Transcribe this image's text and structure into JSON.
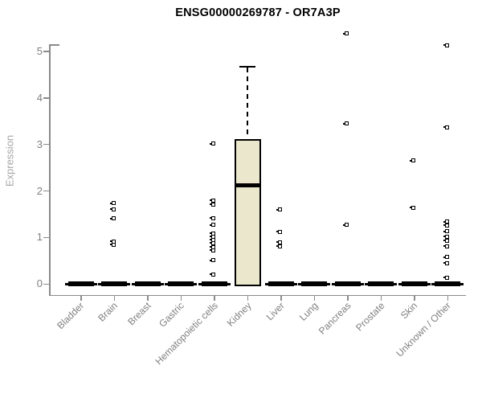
{
  "title": "ENSG00000269787 - OR7A3P",
  "chart_data": {
    "type": "boxplot",
    "title": "ENSG00000269787 - OR7A3P",
    "xlabel": "",
    "ylabel": "Expression",
    "ylim": [
      0,
      5.4
    ],
    "yticks": [
      0,
      1,
      2,
      3,
      4,
      5
    ],
    "grid": false,
    "legend": "none",
    "categories": [
      "Bladder",
      "Brain",
      "Breast",
      "Gastric",
      "Hematopoietic cells",
      "Kidney",
      "Liver",
      "Lung",
      "Pancreas",
      "Prostate",
      "Skin",
      "Unknown / Other"
    ],
    "boxes": [
      {
        "category": "Bladder",
        "q1": 0,
        "median": 0,
        "q3": 0,
        "whisker_low": 0,
        "whisker_high": 0,
        "outliers": []
      },
      {
        "category": "Brain",
        "q1": 0,
        "median": 0,
        "q3": 0,
        "whisker_low": 0,
        "whisker_high": 0,
        "outliers": [
          1.74,
          1.61,
          1.41,
          0.92,
          0.85
        ]
      },
      {
        "category": "Breast",
        "q1": 0,
        "median": 0,
        "q3": 0,
        "whisker_low": 0,
        "whisker_high": 0,
        "outliers": []
      },
      {
        "category": "Gastric",
        "q1": 0,
        "median": 0,
        "q3": 0,
        "whisker_low": 0,
        "whisker_high": 0,
        "outliers": []
      },
      {
        "category": "Hematopoietic cells",
        "q1": 0,
        "median": 0,
        "q3": 0,
        "whisker_low": 0,
        "whisker_high": 0,
        "outliers": [
          3.02,
          1.8,
          1.71,
          1.42,
          1.27,
          1.09,
          1.02,
          0.95,
          0.88,
          0.8,
          0.73,
          0.51,
          0.21
        ]
      },
      {
        "category": "Kidney",
        "q1": 0,
        "median": 2.12,
        "q3": 3.12,
        "whisker_low": 0,
        "whisker_high": 4.67,
        "outliers": []
      },
      {
        "category": "Liver",
        "q1": 0,
        "median": 0,
        "q3": 0,
        "whisker_low": 0,
        "whisker_high": 0,
        "outliers": [
          1.6,
          1.12,
          0.9,
          0.81
        ]
      },
      {
        "category": "Lung",
        "q1": 0,
        "median": 0,
        "q3": 0,
        "whisker_low": 0,
        "whisker_high": 0,
        "outliers": []
      },
      {
        "category": "Pancreas",
        "q1": 0,
        "median": 0,
        "q3": 0,
        "whisker_low": 0,
        "whisker_high": 0,
        "outliers": [
          5.38,
          3.45,
          1.27
        ]
      },
      {
        "category": "Prostate",
        "q1": 0,
        "median": 0,
        "q3": 0,
        "whisker_low": 0,
        "whisker_high": 0,
        "outliers": []
      },
      {
        "category": "Skin",
        "q1": 0,
        "median": 0,
        "q3": 0,
        "whisker_low": 0,
        "whisker_high": 0,
        "outliers": [
          2.65,
          1.64
        ]
      },
      {
        "category": "Unknown / Other",
        "q1": 0,
        "median": 0,
        "q3": 0,
        "whisker_low": 0,
        "whisker_high": 0,
        "outliers": [
          5.13,
          3.37,
          1.34,
          1.26,
          1.13,
          1.02,
          0.93,
          0.81,
          0.58,
          0.45,
          0.14
        ]
      }
    ],
    "colors": {
      "box_fill": "#ebe7cd",
      "box_border": "#000000",
      "median": "#000000",
      "outlier_border": "#000000",
      "outlier_fill": "#ffffff",
      "axis": "#8a8a8a",
      "tick_label": "#808080",
      "axis_label": "#a6a6a6",
      "title": "#000000",
      "background": "#ffffff"
    }
  }
}
